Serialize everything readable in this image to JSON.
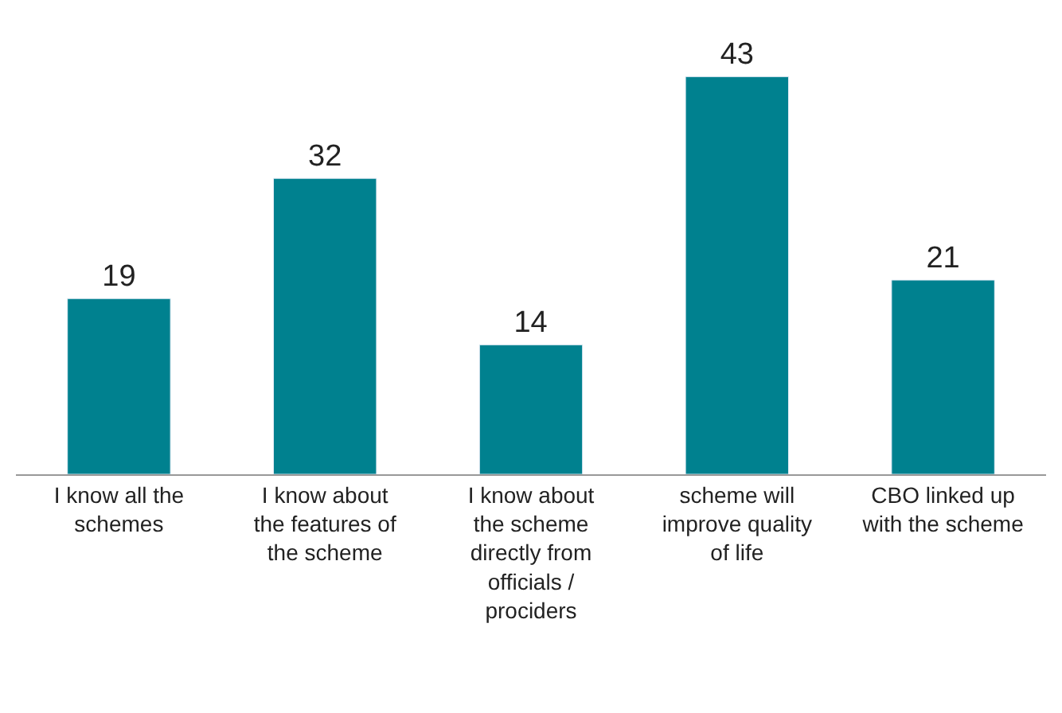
{
  "chart_data": {
    "type": "bar",
    "categories": [
      "I know all the schemes",
      "I know about the features of the scheme",
      "I know about the scheme directly from officials / prociders",
      "scheme will improve quality of life",
      "CBO linked up with the scheme"
    ],
    "values": [
      19,
      32,
      14,
      43,
      21
    ],
    "color": "#00818f",
    "data_labels": true
  }
}
